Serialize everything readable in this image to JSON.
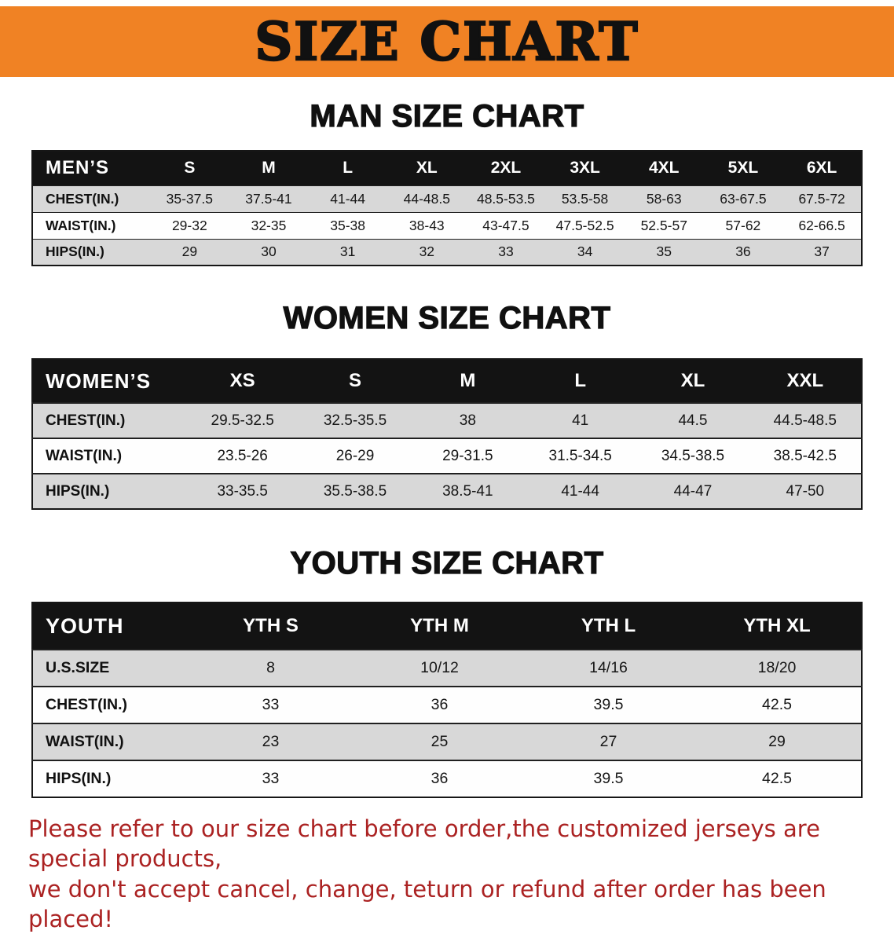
{
  "banner": {
    "title": "SIZE CHART"
  },
  "sections": [
    {
      "heading": "MAN SIZE CHART",
      "table": {
        "header": [
          "MEN’S",
          "S",
          "M",
          "L",
          "XL",
          "2XL",
          "3XL",
          "4XL",
          "5XL",
          "6XL"
        ],
        "rows": [
          [
            "CHEST(IN.)",
            "35-37.5",
            "37.5-41",
            "41-44",
            "44-48.5",
            "48.5-53.5",
            "53.5-58",
            "58-63",
            "63-67.5",
            "67.5-72"
          ],
          [
            "WAIST(IN.)",
            "29-32",
            "32-35",
            "35-38",
            "38-43",
            "43-47.5",
            "47.5-52.5",
            "52.5-57",
            "57-62",
            "62-66.5"
          ],
          [
            "HIPS(IN.)",
            "29",
            "30",
            "31",
            "32",
            "33",
            "34",
            "35",
            "36",
            "37"
          ]
        ]
      }
    },
    {
      "heading": "WOMEN SIZE CHART",
      "table": {
        "header": [
          "WOMEN’S",
          "XS",
          "S",
          "M",
          "L",
          "XL",
          "XXL"
        ],
        "rows": [
          [
            "CHEST(IN.)",
            "29.5-32.5",
            "32.5-35.5",
            "38",
            "41",
            "44.5",
            "44.5-48.5"
          ],
          [
            "WAIST(IN.)",
            "23.5-26",
            "26-29",
            "29-31.5",
            "31.5-34.5",
            "34.5-38.5",
            "38.5-42.5"
          ],
          [
            "HIPS(IN.)",
            "33-35.5",
            "35.5-38.5",
            "38.5-41",
            "41-44",
            "44-47",
            "47-50"
          ]
        ]
      }
    },
    {
      "heading": "YOUTH SIZE CHART",
      "table": {
        "header": [
          "YOUTH",
          "YTH S",
          "YTH M",
          "YTH L",
          "YTH XL"
        ],
        "rows": [
          [
            "U.S.SIZE",
            "8",
            "10/12",
            "14/16",
            "18/20"
          ],
          [
            "CHEST(IN.)",
            "33",
            "36",
            "39.5",
            "42.5"
          ],
          [
            "WAIST(IN.)",
            "23",
            "25",
            "27",
            "29"
          ],
          [
            "HIPS(IN.)",
            "33",
            "36",
            "39.5",
            "42.5"
          ]
        ]
      }
    }
  ],
  "footer": {
    "lines": [
      "Please refer to our size chart before order,the customized jerseys are special products,",
      "we don't accept cancel, change, teturn or refund after order has been placed!"
    ]
  },
  "colors": {
    "banner_bg": "#f08224",
    "table_header_bg": "#131313",
    "row_alt_bg": "#d8d8d8",
    "footer_text": "#ab2222"
  }
}
